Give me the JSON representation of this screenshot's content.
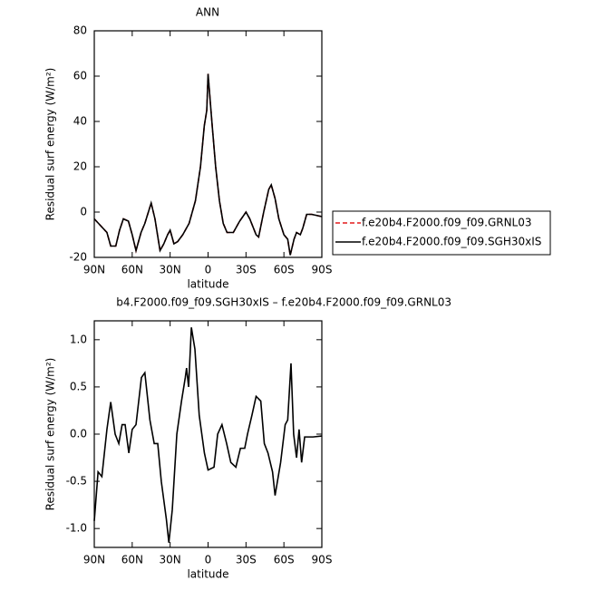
{
  "chart_data": [
    {
      "type": "line",
      "title": "ANN",
      "xlabel": "latitude",
      "ylabel": "Residual surf energy (W/m²)",
      "xlim": [
        90,
        -90
      ],
      "ylim": [
        -20,
        80
      ],
      "xticks": [
        {
          "value": 90,
          "label": "90N"
        },
        {
          "value": 60,
          "label": "60N"
        },
        {
          "value": 30,
          "label": "30N"
        },
        0,
        {
          "value": -30,
          "label": "30S"
        },
        {
          "value": -60,
          "label": "60S"
        },
        {
          "value": -90,
          "label": "90S"
        }
      ],
      "yticks": [
        -20,
        0,
        20,
        40,
        60,
        80
      ],
      "x": [
        90,
        85,
        80,
        77,
        73,
        70,
        67,
        63,
        60,
        57,
        53,
        50,
        45,
        42,
        38,
        35,
        32,
        30,
        27,
        24,
        20,
        15,
        10,
        6,
        3,
        1,
        0,
        -3,
        -6,
        -9,
        -12,
        -15,
        -20,
        -25,
        -30,
        -33,
        -38,
        -40,
        -44,
        -48,
        -50,
        -53,
        -56,
        -60,
        -63,
        -65,
        -68,
        -70,
        -73,
        -75,
        -78,
        -82,
        -86,
        -90
      ],
      "series": [
        {
          "name": "f.e20b4.F2000.f09_f09.GRNL03",
          "color": "#e41a1c",
          "dashed": true,
          "values": [
            -3,
            -6,
            -9,
            -15,
            -15,
            -8,
            -3,
            -4,
            -10,
            -17,
            -9,
            -5,
            4,
            -3,
            -17,
            -14,
            -10,
            -8,
            -14,
            -13,
            -10,
            -5,
            5,
            20,
            38,
            45,
            61,
            40,
            20,
            5,
            -5,
            -9,
            -9,
            -4,
            0,
            -3,
            -10,
            -11,
            0,
            10,
            12,
            6,
            -3,
            -10,
            -12,
            -19,
            -12,
            -9,
            -10,
            -7,
            -1,
            -1,
            -1.5,
            -2
          ]
        },
        {
          "name": "f.e20b4.F2000.f09_f09.SGH30xIS",
          "color": "#000000",
          "dashed": false,
          "values": [
            -3,
            -6,
            -9,
            -15,
            -15,
            -8,
            -3,
            -4,
            -10,
            -17,
            -9,
            -5,
            4,
            -3,
            -17,
            -14,
            -10,
            -8,
            -14,
            -13,
            -10,
            -5,
            5,
            20,
            38,
            45,
            61,
            40,
            20,
            5,
            -5,
            -9,
            -9,
            -4,
            0,
            -3,
            -10,
            -11,
            0,
            10,
            12,
            6,
            -3,
            -10,
            -12,
            -19,
            -12,
            -9,
            -10,
            -7,
            -1,
            -1,
            -1.5,
            -2
          ]
        }
      ]
    },
    {
      "type": "line",
      "title": "b4.F2000.f09_f09.SGH30xIS – f.e20b4.F2000.f09_f09.GRNL03",
      "xlabel": "latitude",
      "ylabel": "Residual surf energy (W/m²)",
      "xlim": [
        90,
        -90
      ],
      "ylim": [
        -1.2,
        1.2
      ],
      "xticks": [
        {
          "value": 90,
          "label": "90N"
        },
        {
          "value": 60,
          "label": "60N"
        },
        {
          "value": 30,
          "label": "30N"
        },
        0,
        {
          "value": -30,
          "label": "30S"
        },
        {
          "value": -60,
          "label": "60S"
        },
        {
          "value": -90,
          "label": "90S"
        }
      ],
      "yticks": [
        {
          "value": -1,
          "label": "-1.0"
        },
        -0.5,
        {
          "value": 0,
          "label": "0.0"
        },
        0.5,
        {
          "value": 1,
          "label": "1.0"
        }
      ],
      "color": "#000000",
      "x": [
        90,
        87,
        84,
        80,
        77,
        73.5,
        70.6,
        68,
        65.6,
        62.7,
        60,
        57,
        52.7,
        50,
        46,
        42.6,
        39.8,
        37,
        33,
        31,
        28.3,
        24.7,
        21,
        18,
        17,
        15.4,
        13.2,
        10.4,
        7,
        2.9,
        0,
        -4.7,
        -7.6,
        -11,
        -14.7,
        -18,
        -22,
        -25.6,
        -29,
        -31.2,
        -34.7,
        -38,
        -41.7,
        -44.5,
        -47.4,
        -51,
        -53,
        -57.4,
        -61,
        -63,
        -65.6,
        -67.7,
        -70,
        -72,
        -74,
        -76.4,
        -83,
        -90
      ],
      "values": [
        -0.92,
        -0.4,
        -0.45,
        0.05,
        0.34,
        0,
        -0.1,
        0.1,
        0.1,
        -0.2,
        0.05,
        0.1,
        0.6,
        0.65,
        0.15,
        -0.1,
        -0.1,
        -0.5,
        -0.9,
        -1.15,
        -0.8,
        0,
        0.35,
        0.6,
        0.7,
        0.5,
        1.13,
        0.9,
        0.2,
        -0.2,
        -0.38,
        -0.35,
        0,
        0.1,
        -0.1,
        -0.3,
        -0.35,
        -0.15,
        -0.15,
        0,
        0.2,
        0.4,
        0.35,
        -0.1,
        -0.2,
        -0.4,
        -0.65,
        -0.3,
        0.1,
        0.15,
        0.75,
        0,
        -0.25,
        0.05,
        -0.3,
        -0.03,
        -0.03,
        -0.02
      ]
    }
  ]
}
